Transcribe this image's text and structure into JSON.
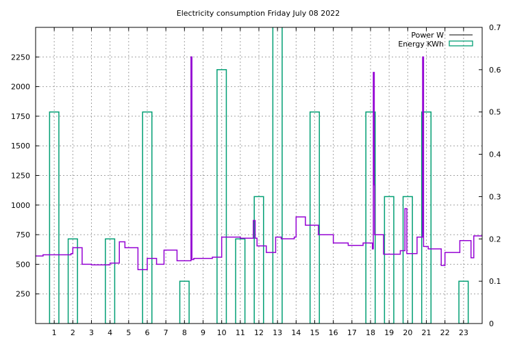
{
  "chart_data": {
    "type": "line",
    "title": "Electricity consumption Friday July 08 2022",
    "xlabel": "",
    "ylabel": "",
    "y2label": "",
    "xlim": [
      0,
      24
    ],
    "ylim": [
      0,
      2500
    ],
    "y2lim": [
      0,
      0.7
    ],
    "grid": true,
    "legend_position": "top-right",
    "x_ticks": [
      "1",
      "2",
      "3",
      "4",
      "5",
      "6",
      "7",
      "8",
      "9",
      "10",
      "11",
      "12",
      "13",
      "14",
      "15",
      "16",
      "17",
      "18",
      "19",
      "20",
      "21",
      "22",
      "23"
    ],
    "y_ticks": [
      "250",
      "500",
      "750",
      "1000",
      "1250",
      "1500",
      "1750",
      "2000",
      "2250"
    ],
    "y2_ticks": [
      "0",
      "0.1",
      "0.2",
      "0.3",
      "0.4",
      "0.5",
      "0.6",
      "0.7"
    ],
    "colors": {
      "power": "#9400d3",
      "energy": "#009e73"
    },
    "series": [
      {
        "name": "Power W",
        "style": "steps",
        "axis": "left",
        "points": [
          [
            0,
            570
          ],
          [
            0.4,
            580
          ],
          [
            1.9,
            590
          ],
          [
            2,
            640
          ],
          [
            2.5,
            500
          ],
          [
            3,
            495
          ],
          [
            4,
            510
          ],
          [
            4.5,
            690
          ],
          [
            4.8,
            640
          ],
          [
            5.5,
            455
          ],
          [
            6,
            550
          ],
          [
            6.5,
            500
          ],
          [
            6.9,
            620
          ],
          [
            7.6,
            530
          ],
          [
            8.35,
            2250
          ],
          [
            8.4,
            540
          ],
          [
            8.5,
            550
          ],
          [
            9.5,
            560
          ],
          [
            10,
            730
          ],
          [
            11,
            720
          ],
          [
            11.7,
            870
          ],
          [
            11.8,
            720
          ],
          [
            11.9,
            655
          ],
          [
            12.4,
            600
          ],
          [
            12.9,
            730
          ],
          [
            13.2,
            715
          ],
          [
            13.9,
            730
          ],
          [
            14,
            900
          ],
          [
            14.5,
            830
          ],
          [
            15.2,
            750
          ],
          [
            16,
            680
          ],
          [
            16.8,
            660
          ],
          [
            17.6,
            680
          ],
          [
            18.1,
            630
          ],
          [
            18.15,
            2120
          ],
          [
            18.2,
            1170
          ],
          [
            18.22,
            750
          ],
          [
            18.7,
            585
          ],
          [
            19.6,
            615
          ],
          [
            19.85,
            970
          ],
          [
            19.95,
            590
          ],
          [
            20.5,
            730
          ],
          [
            20.8,
            2250
          ],
          [
            20.85,
            650
          ],
          [
            21.1,
            630
          ],
          [
            21.8,
            490
          ],
          [
            22,
            600
          ],
          [
            22.8,
            700
          ],
          [
            23.4,
            555
          ],
          [
            23.55,
            740
          ],
          [
            24,
            740
          ]
        ]
      },
      {
        "name": "Energy KWh",
        "style": "boxes",
        "axis": "right",
        "box_width_hours": 0.5,
        "x": [
          1,
          2,
          4,
          6,
          8,
          10,
          11,
          12,
          13,
          15,
          18,
          19,
          20,
          21,
          23
        ],
        "values": [
          0.5,
          0.2,
          0.2,
          0.5,
          0.1,
          0.6,
          0.2,
          0.3,
          0.8,
          0.5,
          0.5,
          0.3,
          0.3,
          0.5,
          0.1
        ]
      }
    ]
  }
}
